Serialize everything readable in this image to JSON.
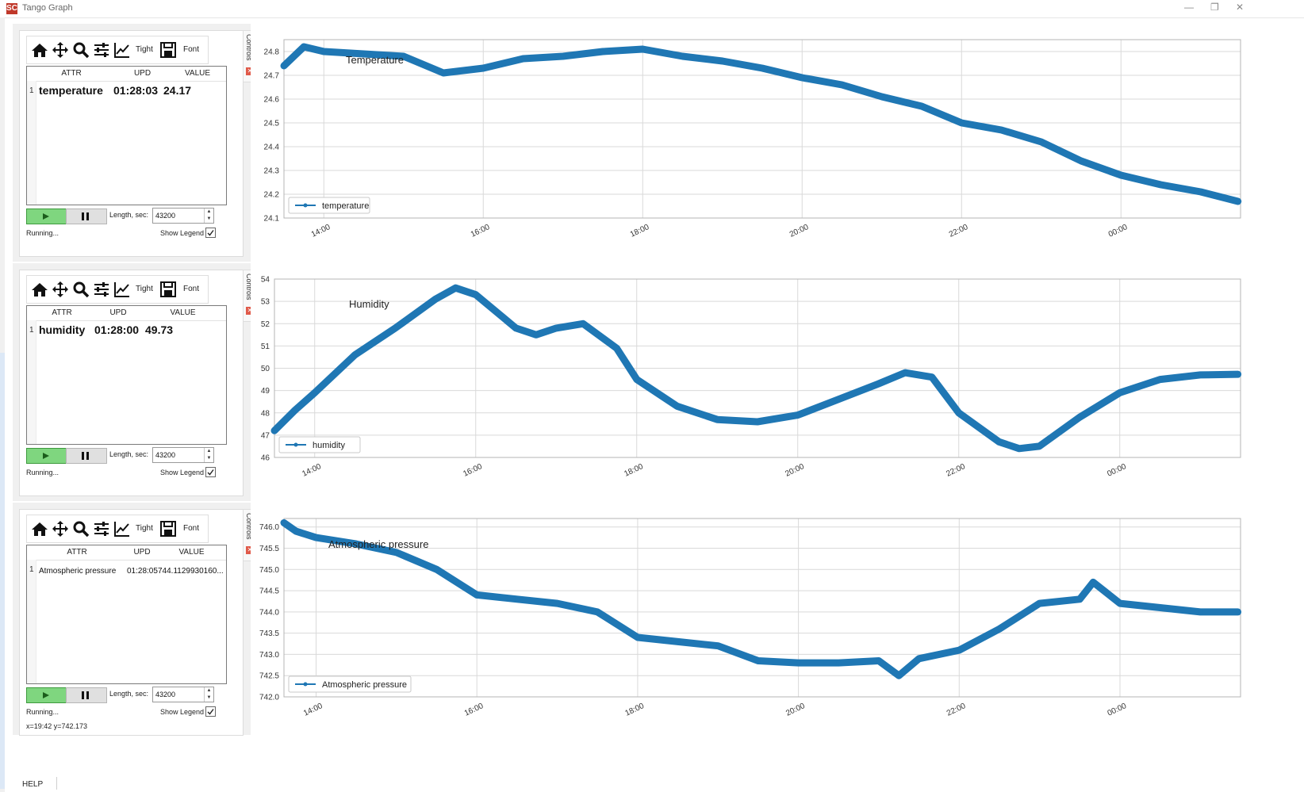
{
  "window": {
    "title": "Tango Graph",
    "icon": "SC",
    "controls": [
      "minimize-icon",
      "restore-icon",
      "close-icon"
    ]
  },
  "toolbar": {
    "icons": [
      "home-icon",
      "pan-icon",
      "zoom-icon",
      "configure-subplots-icon",
      "edit-axes-icon",
      "save-icon"
    ],
    "tight_label": "Tight",
    "font_label": "Font"
  },
  "table_headers": {
    "attr": "ATTR",
    "upd": "UPD",
    "value": "VALUE"
  },
  "controls_tab_label": "Controls",
  "length_label": "Length, sec:",
  "show_legend_label": "Show Legend",
  "help_label": "HELP",
  "colors": {
    "series": "#1f77b4",
    "play": "#7fd67f",
    "separator": "#1a1a1a"
  },
  "panels": [
    {
      "row": {
        "index": "1",
        "attr": "temperature",
        "upd": "01:28:03",
        "value": "24.17"
      },
      "length": "43200",
      "show_legend": true,
      "status": "Running...",
      "coords": ""
    },
    {
      "row": {
        "index": "1",
        "attr": "humidity",
        "upd": "01:28:00",
        "value": "49.73"
      },
      "length": "43200",
      "show_legend": true,
      "status": "Running...",
      "coords": ""
    },
    {
      "row": {
        "index": "1",
        "attr": "Atmospheric pressure",
        "upd": "01:28:05",
        "value": "744.1129930160..."
      },
      "length": "43200",
      "show_legend": true,
      "status": "Running...",
      "coords": "x=19:42 y=742.173"
    }
  ],
  "chart_data": [
    {
      "type": "scatter",
      "title": "Temperature",
      "legend": "temperature",
      "legend_position": "bottom-left",
      "grid": true,
      "xlim": [
        13.5,
        1.5
      ],
      "xticks": [
        "14:00",
        "16:00",
        "18:00",
        "20:00",
        "22:00",
        "00:00"
      ],
      "ylim": [
        24.1,
        24.85
      ],
      "yticks": [
        "24.1",
        "24.2",
        "24.3",
        "24.4",
        "24.5",
        "24.6",
        "24.7",
        "24.8"
      ],
      "x": [
        "13:30",
        "13:45",
        "14:00",
        "14:30",
        "15:00",
        "15:30",
        "16:00",
        "16:30",
        "17:00",
        "17:30",
        "18:00",
        "18:30",
        "19:00",
        "19:30",
        "20:00",
        "20:30",
        "21:00",
        "21:30",
        "22:00",
        "22:30",
        "23:00",
        "23:30",
        "00:00",
        "00:30",
        "01:00",
        "01:28"
      ],
      "y": [
        24.74,
        24.82,
        24.8,
        24.79,
        24.78,
        24.71,
        24.73,
        24.77,
        24.78,
        24.8,
        24.81,
        24.78,
        24.76,
        24.73,
        24.69,
        24.66,
        24.61,
        24.57,
        24.5,
        24.47,
        24.42,
        24.34,
        24.28,
        24.24,
        24.21,
        24.17
      ]
    },
    {
      "type": "scatter",
      "title": "Humidity",
      "legend": "humidity",
      "legend_position": "bottom-left",
      "grid": true,
      "xlim": [
        13.5,
        1.5
      ],
      "xticks": [
        "14:00",
        "16:00",
        "18:00",
        "20:00",
        "22:00",
        "00:00"
      ],
      "ylim": [
        46,
        54
      ],
      "yticks": [
        "46",
        "47",
        "48",
        "49",
        "50",
        "51",
        "52",
        "53",
        "54"
      ],
      "x": [
        "13:30",
        "13:45",
        "14:00",
        "14:30",
        "15:00",
        "15:30",
        "15:45",
        "16:00",
        "16:30",
        "16:45",
        "17:00",
        "17:20",
        "17:45",
        "18:00",
        "18:30",
        "19:00",
        "19:30",
        "20:00",
        "20:30",
        "21:00",
        "21:20",
        "21:40",
        "22:00",
        "22:30",
        "22:45",
        "23:00",
        "23:30",
        "00:00",
        "00:30",
        "01:00",
        "01:28"
      ],
      "y": [
        47.2,
        48.1,
        48.9,
        50.6,
        51.8,
        53.1,
        53.6,
        53.3,
        51.8,
        51.5,
        51.8,
        52.0,
        50.9,
        49.5,
        48.3,
        47.7,
        47.6,
        47.9,
        48.6,
        49.3,
        49.8,
        49.6,
        48.0,
        46.7,
        46.4,
        46.5,
        47.8,
        48.9,
        49.5,
        49.7,
        49.73
      ]
    },
    {
      "type": "scatter",
      "title": "Atmospheric pressure",
      "legend": "Atmospheric pressure",
      "legend_position": "bottom-left",
      "grid": true,
      "xlim": [
        13.6,
        1.5
      ],
      "xticks": [
        "14:00",
        "16:00",
        "18:00",
        "20:00",
        "22:00",
        "00:00"
      ],
      "ylim": [
        742.0,
        746.2
      ],
      "yticks": [
        "742.0",
        "742.5",
        "743.0",
        "743.5",
        "744.0",
        "744.5",
        "745.0",
        "745.5",
        "746.0"
      ],
      "x": [
        "13:36",
        "13:45",
        "14:00",
        "14:30",
        "15:00",
        "15:30",
        "16:00",
        "16:30",
        "17:00",
        "17:30",
        "18:00",
        "18:30",
        "19:00",
        "19:30",
        "20:00",
        "20:30",
        "21:00",
        "21:15",
        "21:30",
        "22:00",
        "22:30",
        "23:00",
        "23:30",
        "23:40",
        "00:00",
        "00:30",
        "01:00",
        "01:28"
      ],
      "y": [
        746.1,
        745.9,
        745.75,
        745.6,
        745.4,
        745.0,
        744.4,
        744.3,
        744.2,
        744.0,
        743.4,
        743.3,
        743.2,
        742.85,
        742.8,
        742.8,
        742.85,
        742.5,
        742.9,
        743.1,
        743.6,
        744.2,
        744.3,
        744.7,
        744.2,
        744.1,
        744.0,
        744.0
      ]
    }
  ]
}
